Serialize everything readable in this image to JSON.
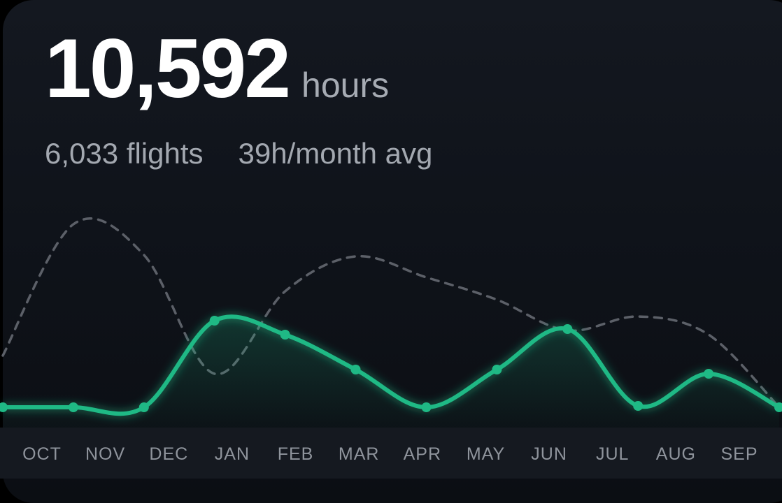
{
  "summary": {
    "hours_value": "10,592",
    "hours_unit": "hours",
    "flights": "6,033 flights",
    "monthly_avg": "39h/month avg"
  },
  "colors": {
    "current_series": "#1fb985",
    "previous_series": "#5c6068",
    "background": "#10141b"
  },
  "chart_data": {
    "type": "line",
    "categories": [
      "OCT",
      "NOV",
      "DEC",
      "JAN",
      "FEB",
      "MAR",
      "APR",
      "MAY",
      "JUN",
      "JUL",
      "AUG",
      "SEP"
    ],
    "series": [
      {
        "values": [
          0,
          0,
          0,
          62,
          52,
          27,
          0,
          27,
          56,
          1,
          24,
          0
        ],
        "style": "solid"
      },
      {
        "values": [
          37,
          131,
          109,
          24,
          83,
          108,
          93,
          77,
          55,
          65,
          52,
          0
        ],
        "style": "dashed"
      }
    ],
    "ylim": [
      0,
      140
    ],
    "grid": false,
    "legend": "none"
  }
}
